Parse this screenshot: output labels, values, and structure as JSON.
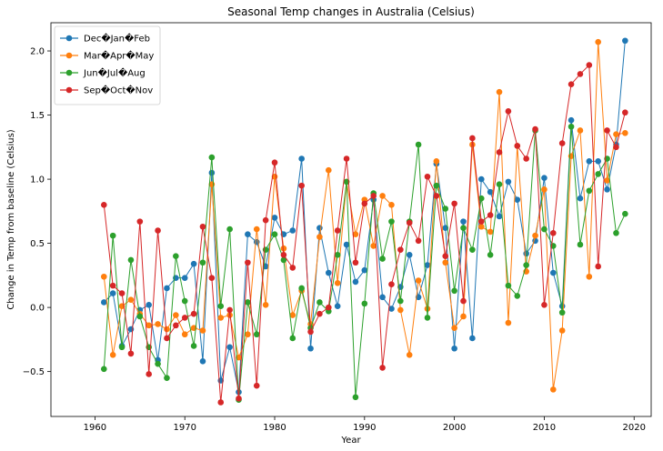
{
  "chart_data": {
    "type": "line",
    "title": "Seasonal Temp changes in Australia (Celsius)",
    "xlabel": "Year",
    "ylabel": "Change in Temp from baseline (Celsius)",
    "xlim": [
      1955.1,
      2021.9
    ],
    "ylim": [
      -0.85,
      2.22
    ],
    "xticks": [
      1960,
      1970,
      1980,
      1990,
      2000,
      2010,
      2020
    ],
    "yticks": [
      -0.5,
      0.0,
      0.5,
      1.0,
      1.5,
      2.0
    ],
    "ytick_labels": [
      "−0.5",
      "0.0",
      "0.5",
      "1.0",
      "1.5",
      "2.0"
    ],
    "grid": false,
    "legend_position": "top-left",
    "x": [
      1961,
      1962,
      1963,
      1964,
      1965,
      1966,
      1967,
      1968,
      1969,
      1970,
      1971,
      1972,
      1973,
      1974,
      1975,
      1976,
      1977,
      1978,
      1979,
      1980,
      1981,
      1982,
      1983,
      1984,
      1985,
      1986,
      1987,
      1988,
      1989,
      1990,
      1991,
      1992,
      1993,
      1994,
      1995,
      1996,
      1997,
      1998,
      1999,
      2000,
      2001,
      2002,
      2003,
      2004,
      2005,
      2006,
      2007,
      2008,
      2009,
      2010,
      2011,
      2012,
      2013,
      2014,
      2015,
      2016,
      2017,
      2018,
      2019
    ],
    "series": [
      {
        "name": "Dec�Jan�Feb",
        "color": "#1f77b4",
        "values": [
          0.04,
          0.11,
          -0.3,
          -0.17,
          -0.02,
          0.02,
          -0.41,
          0.15,
          0.23,
          0.23,
          0.34,
          -0.42,
          1.05,
          -0.57,
          -0.31,
          -0.66,
          0.57,
          0.51,
          0.32,
          0.7,
          0.57,
          0.6,
          1.16,
          -0.32,
          0.62,
          0.27,
          0.01,
          0.49,
          0.2,
          0.29,
          0.84,
          0.08,
          -0.01,
          0.16,
          0.41,
          0.08,
          0.33,
          1.12,
          0.62,
          -0.32,
          0.67,
          -0.24,
          1.0,
          0.9,
          0.71,
          0.98,
          0.84,
          0.42,
          0.52,
          1.01,
          0.27,
          0.01,
          1.46,
          0.85,
          1.14,
          1.14,
          0.92,
          1.27,
          2.08
        ]
      },
      {
        "name": "Mar�Apr�May",
        "color": "#ff7f0e",
        "values": [
          0.24,
          -0.37,
          0.01,
          0.06,
          -0.05,
          -0.14,
          -0.13,
          -0.17,
          -0.06,
          -0.21,
          -0.16,
          -0.18,
          0.96,
          -0.08,
          -0.06,
          -0.39,
          -0.21,
          0.61,
          0.02,
          1.02,
          0.46,
          -0.06,
          0.13,
          -0.13,
          0.55,
          1.07,
          0.19,
          0.98,
          0.57,
          0.84,
          0.48,
          0.87,
          0.8,
          -0.02,
          -0.37,
          0.21,
          -0.01,
          1.14,
          0.35,
          -0.16,
          -0.07,
          1.27,
          0.63,
          0.59,
          1.68,
          -0.12,
          1.26,
          0.28,
          0.56,
          0.92,
          -0.64,
          -0.18,
          1.18,
          1.38,
          0.24,
          2.07,
          0.99,
          1.35,
          1.36
        ]
      },
      {
        "name": "Jun�Jul�Aug",
        "color": "#2ca02c",
        "values": [
          -0.48,
          0.56,
          -0.31,
          0.37,
          -0.07,
          -0.31,
          -0.44,
          -0.55,
          0.4,
          0.05,
          -0.3,
          0.35,
          1.17,
          0.01,
          0.61,
          -0.72,
          0.04,
          -0.21,
          0.45,
          0.57,
          0.37,
          -0.24,
          0.15,
          -0.16,
          0.04,
          -0.03,
          0.41,
          0.98,
          -0.7,
          0.03,
          0.89,
          0.38,
          0.67,
          0.05,
          0.67,
          1.27,
          -0.08,
          0.95,
          0.77,
          0.13,
          0.62,
          0.45,
          0.85,
          0.41,
          0.96,
          0.17,
          0.09,
          0.33,
          1.38,
          0.61,
          0.48,
          -0.04,
          1.41,
          0.49,
          0.91,
          1.04,
          1.16,
          0.58,
          0.73
        ]
      },
      {
        "name": "Sep�Oct�Nov",
        "color": "#d62728",
        "values": [
          0.8,
          0.17,
          0.11,
          -0.36,
          0.67,
          -0.52,
          0.6,
          -0.24,
          -0.14,
          -0.08,
          -0.05,
          0.63,
          0.23,
          -0.74,
          -0.02,
          -0.71,
          0.35,
          -0.61,
          0.68,
          1.13,
          0.41,
          0.31,
          0.95,
          -0.19,
          -0.05,
          0.0,
          0.6,
          1.16,
          0.35,
          0.81,
          0.87,
          -0.47,
          0.18,
          0.45,
          0.66,
          0.52,
          1.02,
          0.87,
          0.4,
          0.81,
          0.05,
          1.32,
          0.67,
          0.72,
          1.21,
          1.53,
          1.26,
          1.16,
          1.39,
          0.02,
          0.58,
          1.28,
          1.74,
          1.82,
          1.89,
          0.32,
          1.38,
          1.25,
          1.52
        ]
      }
    ]
  }
}
